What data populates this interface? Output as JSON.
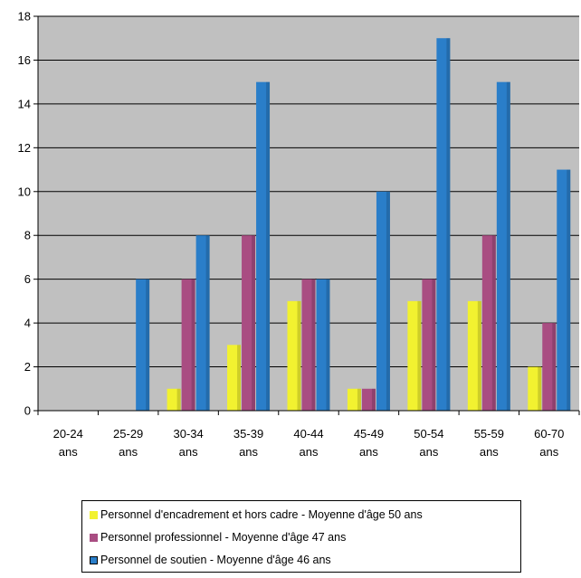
{
  "chart_data": {
    "type": "bar",
    "categories": [
      [
        "20-24",
        "ans"
      ],
      [
        "25-29",
        "ans"
      ],
      [
        "30-34",
        "ans"
      ],
      [
        "35-39",
        "ans"
      ],
      [
        "40-44",
        "ans"
      ],
      [
        "45-49",
        "ans"
      ],
      [
        "50-54",
        "ans"
      ],
      [
        "55-59",
        "ans"
      ],
      [
        "60-70",
        "ans"
      ]
    ],
    "series": [
      {
        "name": "Personnel d'encadrement et hors cadre - Moyenne d'âge  50 ans",
        "color": "#f2f230",
        "values": [
          0,
          0,
          1,
          3,
          5,
          1,
          5,
          5,
          2
        ]
      },
      {
        "name": "Personnel professionnel - Moyenne d'âge  47 ans",
        "color": "#a94d82",
        "values": [
          0,
          0,
          6,
          8,
          6,
          1,
          6,
          8,
          4
        ]
      },
      {
        "name": "Personnel de soutien - Moyenne d'âge  46 ans",
        "color": "#2a7ec9",
        "values": [
          0,
          6,
          8,
          15,
          6,
          10,
          17,
          15,
          11
        ]
      }
    ],
    "y_ticks": [
      "0",
      "2",
      "4",
      "6",
      "8",
      "10",
      "12",
      "14",
      "16",
      "18"
    ],
    "ylim": [
      0,
      18
    ],
    "grid": true,
    "plot_background": "#c0c0c0",
    "legend_position": "bottom"
  }
}
